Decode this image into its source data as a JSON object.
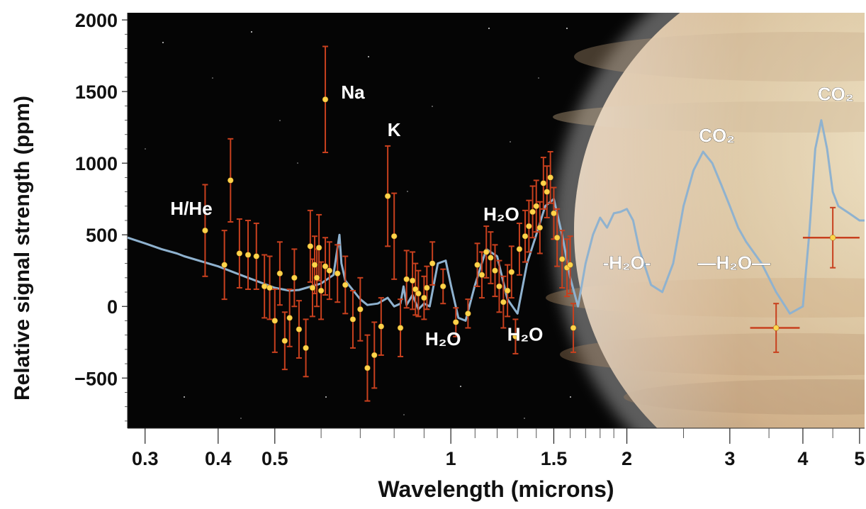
{
  "chart_data": {
    "type": "scatter",
    "title": "",
    "xlabel": "Wavelength (microns)",
    "ylabel": "Relative signal strength (ppm)",
    "x_scale": "log",
    "xlim": [
      0.28,
      5.1
    ],
    "ylim": [
      -850,
      2050
    ],
    "x_ticks": [
      0.3,
      0.4,
      0.5,
      1,
      1.5,
      2,
      3,
      4,
      5
    ],
    "x_tick_labels": [
      "0.3",
      "0.4",
      "0.5",
      "1",
      "1.5",
      "2",
      "3",
      "4",
      "5"
    ],
    "y_ticks": [
      2000,
      1500,
      1000,
      500,
      0,
      -500
    ],
    "y_tick_labels": [
      "2000",
      "1500",
      "1000",
      "500",
      "0",
      "−500"
    ],
    "colors": {
      "background": "#050505",
      "planet": "#d7c09a",
      "model_line": "#8fb2cf",
      "data_point": "#ffd44a",
      "error_bar": "#c8401e"
    },
    "series": [
      {
        "kind": "model-line",
        "x": [
          0.28,
          0.3,
          0.32,
          0.34,
          0.35,
          0.4,
          0.45,
          0.5,
          0.53,
          0.55,
          0.6,
          0.63,
          0.645,
          0.65,
          0.66,
          0.7,
          0.72,
          0.75,
          0.78,
          0.8,
          0.82,
          0.83,
          0.84,
          0.86,
          0.88,
          0.9,
          0.92,
          0.95,
          0.98,
          1.0,
          1.03,
          1.06,
          1.1,
          1.15,
          1.2,
          1.25,
          1.3,
          1.35,
          1.4,
          1.45,
          1.5,
          1.55,
          1.6,
          1.65,
          1.7,
          1.75,
          1.8,
          1.85,
          1.9,
          1.95,
          2.0,
          2.05,
          2.1,
          2.2,
          2.3,
          2.4,
          2.5,
          2.6,
          2.7,
          2.8,
          2.9,
          3.0,
          3.1,
          3.2,
          3.4,
          3.6,
          3.8,
          4.0,
          4.1,
          4.2,
          4.3,
          4.4,
          4.5,
          4.6,
          4.8,
          5.0,
          5.1
        ],
        "y": [
          480,
          440,
          400,
          370,
          350,
          280,
          200,
          130,
          110,
          115,
          160,
          220,
          500,
          300,
          180,
          50,
          10,
          20,
          60,
          0,
          20,
          140,
          10,
          80,
          -20,
          20,
          0,
          300,
          320,
          150,
          -80,
          -100,
          150,
          400,
          350,
          50,
          -50,
          300,
          500,
          700,
          750,
          500,
          200,
          0,
          300,
          500,
          620,
          550,
          650,
          660,
          680,
          600,
          400,
          150,
          100,
          300,
          700,
          950,
          1080,
          1000,
          850,
          700,
          550,
          450,
          300,
          100,
          -50,
          0,
          500,
          1100,
          1300,
          1100,
          800,
          700,
          650,
          600,
          600
        ]
      },
      {
        "kind": "measurements",
        "points": [
          {
            "x": 0.38,
            "y": 530,
            "err": 320
          },
          {
            "x": 0.41,
            "y": 290,
            "err": 240
          },
          {
            "x": 0.42,
            "y": 880,
            "err": 290
          },
          {
            "x": 0.435,
            "y": 370,
            "err": 240
          },
          {
            "x": 0.45,
            "y": 360,
            "err": 240
          },
          {
            "x": 0.465,
            "y": 350,
            "err": 230
          },
          {
            "x": 0.48,
            "y": 140,
            "err": 220
          },
          {
            "x": 0.49,
            "y": 130,
            "err": 220
          },
          {
            "x": 0.5,
            "y": -100,
            "err": 220
          },
          {
            "x": 0.51,
            "y": 230,
            "err": 220
          },
          {
            "x": 0.52,
            "y": -240,
            "err": 200
          },
          {
            "x": 0.53,
            "y": -80,
            "err": 200
          },
          {
            "x": 0.54,
            "y": 200,
            "err": 200
          },
          {
            "x": 0.55,
            "y": -160,
            "err": 200
          },
          {
            "x": 0.565,
            "y": -290,
            "err": 200
          },
          {
            "x": 0.575,
            "y": 420,
            "err": 250
          },
          {
            "x": 0.58,
            "y": 130,
            "err": 200
          },
          {
            "x": 0.585,
            "y": 290,
            "err": 200
          },
          {
            "x": 0.59,
            "y": 200,
            "err": 200
          },
          {
            "x": 0.595,
            "y": 410,
            "err": 230
          },
          {
            "x": 0.6,
            "y": 110,
            "err": 200
          },
          {
            "x": 0.61,
            "y": 280,
            "err": 200
          },
          {
            "x": 0.62,
            "y": 250,
            "err": 200
          },
          {
            "x": 0.61,
            "y": 1445,
            "err": 370
          },
          {
            "x": 0.64,
            "y": 230,
            "err": 200
          },
          {
            "x": 0.66,
            "y": 150,
            "err": 200
          },
          {
            "x": 0.68,
            "y": -90,
            "err": 200
          },
          {
            "x": 0.7,
            "y": -20,
            "err": 220
          },
          {
            "x": 0.72,
            "y": -430,
            "err": 230
          },
          {
            "x": 0.74,
            "y": -340,
            "err": 230
          },
          {
            "x": 0.76,
            "y": -140,
            "err": 200
          },
          {
            "x": 0.78,
            "y": 770,
            "err": 350
          },
          {
            "x": 0.8,
            "y": 490,
            "err": 300
          },
          {
            "x": 0.82,
            "y": -150,
            "err": 200
          },
          {
            "x": 0.84,
            "y": 190,
            "err": 200
          },
          {
            "x": 0.86,
            "y": 180,
            "err": 200
          },
          {
            "x": 0.87,
            "y": 120,
            "err": 180
          },
          {
            "x": 0.88,
            "y": 90,
            "err": 160
          },
          {
            "x": 0.9,
            "y": 60,
            "err": 150
          },
          {
            "x": 0.91,
            "y": 130,
            "err": 150
          },
          {
            "x": 0.93,
            "y": 300,
            "err": 150
          },
          {
            "x": 0.97,
            "y": 140,
            "err": 120
          },
          {
            "x": 1.02,
            "y": -110,
            "err": 100
          },
          {
            "x": 1.07,
            "y": -50,
            "err": 100
          },
          {
            "x": 1.11,
            "y": 290,
            "err": 150
          },
          {
            "x": 1.13,
            "y": 220,
            "err": 160
          },
          {
            "x": 1.15,
            "y": 380,
            "err": 180
          },
          {
            "x": 1.17,
            "y": 340,
            "err": 180
          },
          {
            "x": 1.19,
            "y": 250,
            "err": 180
          },
          {
            "x": 1.21,
            "y": 140,
            "err": 180
          },
          {
            "x": 1.23,
            "y": 30,
            "err": 180
          },
          {
            "x": 1.25,
            "y": 110,
            "err": 180
          },
          {
            "x": 1.27,
            "y": 240,
            "err": 180
          },
          {
            "x": 1.29,
            "y": -210,
            "err": 120
          },
          {
            "x": 1.31,
            "y": 400,
            "err": 180
          },
          {
            "x": 1.34,
            "y": 490,
            "err": 180
          },
          {
            "x": 1.36,
            "y": 560,
            "err": 180
          },
          {
            "x": 1.38,
            "y": 660,
            "err": 180
          },
          {
            "x": 1.4,
            "y": 700,
            "err": 180
          },
          {
            "x": 1.42,
            "y": 550,
            "err": 180
          },
          {
            "x": 1.44,
            "y": 860,
            "err": 180
          },
          {
            "x": 1.46,
            "y": 800,
            "err": 180
          },
          {
            "x": 1.48,
            "y": 900,
            "err": 180
          },
          {
            "x": 1.5,
            "y": 650,
            "err": 180
          },
          {
            "x": 1.52,
            "y": 480,
            "err": 200
          },
          {
            "x": 1.55,
            "y": 330,
            "err": 200
          },
          {
            "x": 1.58,
            "y": 270,
            "err": 200
          },
          {
            "x": 1.6,
            "y": 290,
            "err": 200
          },
          {
            "x": 1.62,
            "y": -150,
            "err": 170
          },
          {
            "x": 3.6,
            "y": -150,
            "err": 170,
            "xerr": 0.35
          },
          {
            "x": 4.5,
            "y": 480,
            "err": 210,
            "xerr": 0.5
          }
        ]
      }
    ],
    "annotations": [
      {
        "id": "na",
        "text": "Na",
        "x": 0.68,
        "y": 1450
      },
      {
        "id": "k",
        "text": "K",
        "x": 0.8,
        "y": 1190
      },
      {
        "id": "hhe",
        "text": "H/He",
        "x": 0.36,
        "y": 640
      },
      {
        "id": "h2o-mid",
        "text": "H₂O",
        "x": 1.22,
        "y": 600
      },
      {
        "id": "h2o-low1",
        "text": "H₂O",
        "x": 0.97,
        "y": -270
      },
      {
        "id": "h2o-low2",
        "text": "H₂O",
        "x": 1.34,
        "y": -240
      },
      {
        "id": "h2o-band1",
        "text": "-H₂O-",
        "x": 2.0,
        "y": 260
      },
      {
        "id": "h2o-band2",
        "text": "—H₂O—",
        "x": 3.05,
        "y": 260
      },
      {
        "id": "co2-1",
        "text": "CO₂",
        "x": 2.85,
        "y": 1150
      },
      {
        "id": "co2-2",
        "text": "CO₂",
        "x": 4.55,
        "y": 1440
      }
    ]
  }
}
